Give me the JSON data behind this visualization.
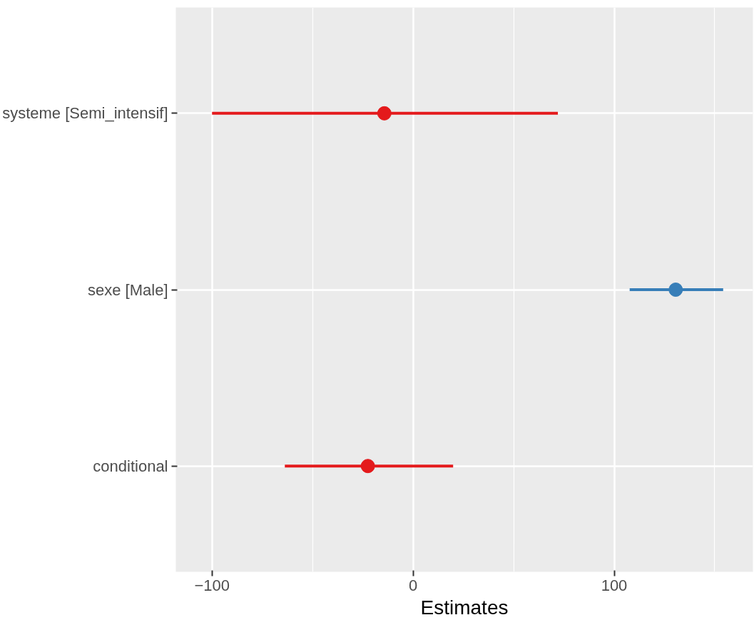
{
  "chart_data": {
    "type": "scatter",
    "orientation": "horizontal",
    "xlabel": "Estimates",
    "categories": [
      "systeme [Semi_intensif]",
      "sexe [Male]",
      "conditional"
    ],
    "values": [
      -14.3,
      130.6,
      -22.5
    ],
    "errors": [
      [
        -100,
        72
      ],
      [
        107.7,
        154.2
      ],
      [
        -63.8,
        19.9
      ]
    ],
    "colors": [
      "#e41a1c",
      "#377eb8",
      "#e41a1c"
    ],
    "xlim": [
      -118,
      169
    ],
    "xticks": [
      -100,
      {
        "value": -50,
        "label": null
      },
      0,
      {
        "value": 50,
        "label": null
      },
      100,
      {
        "value": 150,
        "label": null
      }
    ],
    "grid": true,
    "marker": "circle"
  }
}
